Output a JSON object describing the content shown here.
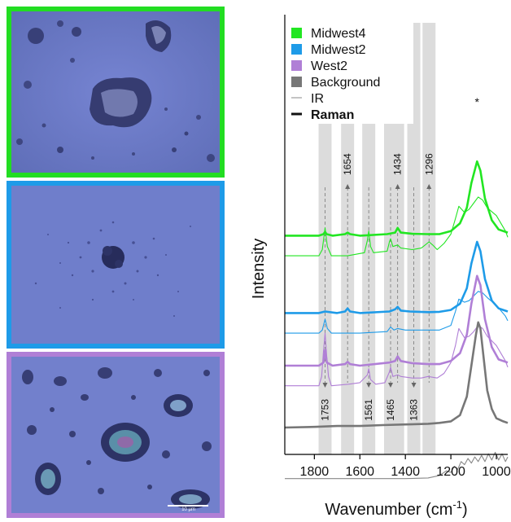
{
  "micrographs": [
    {
      "sample": "Midwest4",
      "border_color": "#22dd22"
    },
    {
      "sample": "Midwest2",
      "border_color": "#1e9be8"
    },
    {
      "sample": "West2",
      "border_color": "#b07fd6",
      "scale_bar": "10 µm"
    }
  ],
  "chart_data": {
    "type": "line",
    "xlabel": "Wavenumber (cm",
    "xlabel_sup": "-1",
    "xlabel_close": ")",
    "ylabel": "Intensity",
    "x_reversed": true,
    "xlim": [
      1930,
      950
    ],
    "xticks": [
      "1800",
      "1600",
      "1400",
      "1200",
      "1000"
    ],
    "xtick_values": [
      1800,
      1600,
      1400,
      1200,
      1000
    ],
    "grid": false,
    "legend_position": "top-left",
    "legend": [
      {
        "label": "Midwest4",
        "kind": "swatch",
        "color": "#22e622"
      },
      {
        "label": "Midwest2",
        "kind": "swatch",
        "color": "#1e9be8"
      },
      {
        "label": "West2",
        "kind": "swatch",
        "color": "#b07fd6"
      },
      {
        "label": "Background",
        "kind": "swatch",
        "color": "#777777"
      },
      {
        "label": "IR",
        "kind": "thin-line",
        "color": "#888888"
      },
      {
        "label": "Raman",
        "kind": "thick-line",
        "color": "#111111"
      }
    ],
    "peak_marker": "*",
    "shaded_bands": [
      {
        "center": 1753,
        "label": "1753",
        "label_side": "bottom"
      },
      {
        "center": 1654,
        "label": "1654",
        "label_side": "top"
      },
      {
        "center": 1561,
        "label": "1561",
        "label_side": "bottom"
      },
      {
        "center": 1465,
        "label": "1465",
        "label_side": "bottom"
      },
      {
        "center": 1434,
        "label": "1434",
        "label_side": "top"
      },
      {
        "center": 1363,
        "label": "1363",
        "label_side": "bottom"
      },
      {
        "center": 1296,
        "label": "1296",
        "label_side": "top"
      }
    ],
    "series": [
      {
        "name": "Midwest4",
        "type": "Raman",
        "color": "#22e622",
        "offset": 6.2,
        "points": [
          [
            1930,
            0.0
          ],
          [
            1780,
            0.0
          ],
          [
            1760,
            0.05
          ],
          [
            1753,
            0.12
          ],
          [
            1746,
            0.05
          ],
          [
            1720,
            0.0
          ],
          [
            1665,
            0.05
          ],
          [
            1654,
            0.1
          ],
          [
            1643,
            0.05
          ],
          [
            1600,
            0.0
          ],
          [
            1480,
            0.05
          ],
          [
            1445,
            0.1
          ],
          [
            1434,
            0.25
          ],
          [
            1420,
            0.1
          ],
          [
            1370,
            0.06
          ],
          [
            1300,
            0.05
          ],
          [
            1250,
            0.05
          ],
          [
            1200,
            0.15
          ],
          [
            1160,
            0.4
          ],
          [
            1130,
            0.9
          ],
          [
            1110,
            1.7
          ],
          [
            1085,
            2.4
          ],
          [
            1070,
            2.1
          ],
          [
            1050,
            1.2
          ],
          [
            1020,
            0.5
          ],
          [
            990,
            0.2
          ],
          [
            950,
            0.1
          ]
        ]
      },
      {
        "name": "Midwest4",
        "type": "IR",
        "color": "#22e622",
        "offset": 5.55,
        "points": [
          [
            1930,
            0.0
          ],
          [
            1780,
            0.0
          ],
          [
            1765,
            0.2
          ],
          [
            1753,
            0.9
          ],
          [
            1743,
            0.3
          ],
          [
            1725,
            0.0
          ],
          [
            1680,
            0.0
          ],
          [
            1654,
            0.0
          ],
          [
            1580,
            0.1
          ],
          [
            1567,
            0.5
          ],
          [
            1561,
            0.8
          ],
          [
            1553,
            0.3
          ],
          [
            1540,
            0.1
          ],
          [
            1480,
            0.15
          ],
          [
            1470,
            0.45
          ],
          [
            1465,
            0.55
          ],
          [
            1455,
            0.3
          ],
          [
            1434,
            0.35
          ],
          [
            1420,
            0.25
          ],
          [
            1370,
            0.2
          ],
          [
            1330,
            0.25
          ],
          [
            1296,
            0.45
          ],
          [
            1280,
            0.35
          ],
          [
            1260,
            0.2
          ],
          [
            1230,
            0.4
          ],
          [
            1200,
            0.7
          ],
          [
            1180,
            1.2
          ],
          [
            1165,
            1.6
          ],
          [
            1140,
            1.4
          ],
          [
            1120,
            1.5
          ],
          [
            1100,
            1.7
          ],
          [
            1080,
            1.9
          ],
          [
            1060,
            1.8
          ],
          [
            1040,
            1.55
          ],
          [
            1000,
            1.3
          ],
          [
            960,
            0.8
          ],
          [
            950,
            0.6
          ]
        ]
      },
      {
        "name": "Midwest2",
        "type": "Raman",
        "color": "#1e9be8",
        "offset": 3.7,
        "points": [
          [
            1930,
            0.0
          ],
          [
            1780,
            0.0
          ],
          [
            1753,
            0.05
          ],
          [
            1700,
            0.0
          ],
          [
            1665,
            0.05
          ],
          [
            1654,
            0.15
          ],
          [
            1643,
            0.05
          ],
          [
            1600,
            0.0
          ],
          [
            1470,
            0.05
          ],
          [
            1445,
            0.12
          ],
          [
            1434,
            0.2
          ],
          [
            1420,
            0.08
          ],
          [
            1380,
            0.05
          ],
          [
            1300,
            0.03
          ],
          [
            1250,
            0.04
          ],
          [
            1200,
            0.1
          ],
          [
            1160,
            0.3
          ],
          [
            1130,
            0.8
          ],
          [
            1110,
            1.6
          ],
          [
            1085,
            2.3
          ],
          [
            1070,
            2.0
          ],
          [
            1050,
            1.1
          ],
          [
            1020,
            0.4
          ],
          [
            990,
            0.15
          ],
          [
            950,
            0.05
          ]
        ]
      },
      {
        "name": "Midwest2",
        "type": "IR",
        "color": "#1e9be8",
        "offset": 3.05,
        "points": [
          [
            1930,
            0.0
          ],
          [
            1780,
            0.0
          ],
          [
            1765,
            0.1
          ],
          [
            1753,
            0.45
          ],
          [
            1743,
            0.15
          ],
          [
            1725,
            0.0
          ],
          [
            1600,
            0.0
          ],
          [
            1480,
            0.05
          ],
          [
            1465,
            0.2
          ],
          [
            1450,
            0.1
          ],
          [
            1434,
            0.15
          ],
          [
            1400,
            0.1
          ],
          [
            1300,
            0.1
          ],
          [
            1250,
            0.1
          ],
          [
            1200,
            0.25
          ],
          [
            1180,
            0.7
          ],
          [
            1165,
            1.1
          ],
          [
            1140,
            1.0
          ],
          [
            1120,
            1.05
          ],
          [
            1100,
            1.2
          ],
          [
            1080,
            1.35
          ],
          [
            1060,
            1.3
          ],
          [
            1040,
            1.15
          ],
          [
            1000,
            0.9
          ],
          [
            960,
            0.55
          ],
          [
            950,
            0.4
          ]
        ]
      },
      {
        "name": "West2",
        "type": "Raman",
        "color": "#b07fd6",
        "offset": 2.0,
        "points": [
          [
            1930,
            0.0
          ],
          [
            1780,
            0.0
          ],
          [
            1760,
            0.1
          ],
          [
            1753,
            0.5
          ],
          [
            1745,
            0.1
          ],
          [
            1720,
            0.0
          ],
          [
            1665,
            0.05
          ],
          [
            1654,
            0.12
          ],
          [
            1643,
            0.05
          ],
          [
            1600,
            0.0
          ],
          [
            1470,
            0.1
          ],
          [
            1445,
            0.15
          ],
          [
            1434,
            0.3
          ],
          [
            1420,
            0.15
          ],
          [
            1370,
            0.08
          ],
          [
            1300,
            0.05
          ],
          [
            1250,
            0.05
          ],
          [
            1200,
            0.15
          ],
          [
            1160,
            0.4
          ],
          [
            1130,
            1.0
          ],
          [
            1110,
            2.0
          ],
          [
            1085,
            2.9
          ],
          [
            1070,
            2.6
          ],
          [
            1050,
            1.5
          ],
          [
            1020,
            0.6
          ],
          [
            990,
            0.2
          ],
          [
            950,
            0.1
          ]
        ]
      },
      {
        "name": "West2",
        "type": "IR",
        "color": "#b07fd6",
        "offset": 1.35,
        "points": [
          [
            1930,
            0.0
          ],
          [
            1780,
            0.0
          ],
          [
            1768,
            0.3
          ],
          [
            1760,
            1.1
          ],
          [
            1753,
            1.7
          ],
          [
            1746,
            1.0
          ],
          [
            1738,
            0.3
          ],
          [
            1725,
            0.0
          ],
          [
            1650,
            0.05
          ],
          [
            1600,
            0.1
          ],
          [
            1567,
            0.35
          ],
          [
            1561,
            0.55
          ],
          [
            1553,
            0.2
          ],
          [
            1530,
            0.05
          ],
          [
            1490,
            0.1
          ],
          [
            1470,
            0.45
          ],
          [
            1465,
            0.6
          ],
          [
            1455,
            0.3
          ],
          [
            1434,
            0.35
          ],
          [
            1420,
            0.3
          ],
          [
            1370,
            0.25
          ],
          [
            1330,
            0.25
          ],
          [
            1300,
            0.3
          ],
          [
            1260,
            0.25
          ],
          [
            1230,
            0.4
          ],
          [
            1200,
            0.75
          ],
          [
            1180,
            1.3
          ],
          [
            1165,
            1.85
          ],
          [
            1140,
            1.55
          ],
          [
            1120,
            1.6
          ],
          [
            1100,
            1.75
          ],
          [
            1080,
            1.95
          ],
          [
            1060,
            1.85
          ],
          [
            1040,
            1.6
          ],
          [
            1000,
            1.3
          ],
          [
            960,
            0.8
          ],
          [
            950,
            0.6
          ]
        ]
      },
      {
        "name": "Background",
        "type": "Raman",
        "color": "#777777",
        "offset": 0.0,
        "points": [
          [
            1930,
            0.0
          ],
          [
            1800,
            0.02
          ],
          [
            1700,
            0.05
          ],
          [
            1600,
            0.05
          ],
          [
            1500,
            0.08
          ],
          [
            1400,
            0.1
          ],
          [
            1300,
            0.12
          ],
          [
            1250,
            0.15
          ],
          [
            1200,
            0.2
          ],
          [
            1160,
            0.4
          ],
          [
            1130,
            1.0
          ],
          [
            1110,
            2.0
          ],
          [
            1090,
            3.0
          ],
          [
            1080,
            3.4
          ],
          [
            1070,
            3.2
          ],
          [
            1055,
            2.2
          ],
          [
            1040,
            1.2
          ],
          [
            1020,
            0.6
          ],
          [
            1000,
            0.3
          ],
          [
            970,
            0.2
          ],
          [
            950,
            0.15
          ]
        ]
      },
      {
        "name": "Background",
        "type": "IR",
        "color": "#888888",
        "offset": -1.65,
        "points": [
          [
            1930,
            0.0
          ],
          [
            1800,
            0.0
          ],
          [
            1600,
            0.0
          ],
          [
            1400,
            0.0
          ],
          [
            1300,
            0.02
          ],
          [
            1250,
            0.1
          ],
          [
            1220,
            0.25
          ],
          [
            1200,
            0.2
          ],
          [
            1185,
            0.4
          ],
          [
            1170,
            0.3
          ],
          [
            1155,
            0.55
          ],
          [
            1140,
            0.45
          ],
          [
            1125,
            0.65
          ],
          [
            1110,
            0.5
          ],
          [
            1095,
            0.7
          ],
          [
            1080,
            0.55
          ],
          [
            1065,
            0.75
          ],
          [
            1050,
            0.55
          ],
          [
            1035,
            0.8
          ],
          [
            1020,
            0.6
          ],
          [
            1005,
            0.85
          ],
          [
            990,
            0.6
          ],
          [
            975,
            0.8
          ],
          [
            960,
            0.55
          ],
          [
            950,
            0.7
          ]
        ]
      }
    ]
  }
}
